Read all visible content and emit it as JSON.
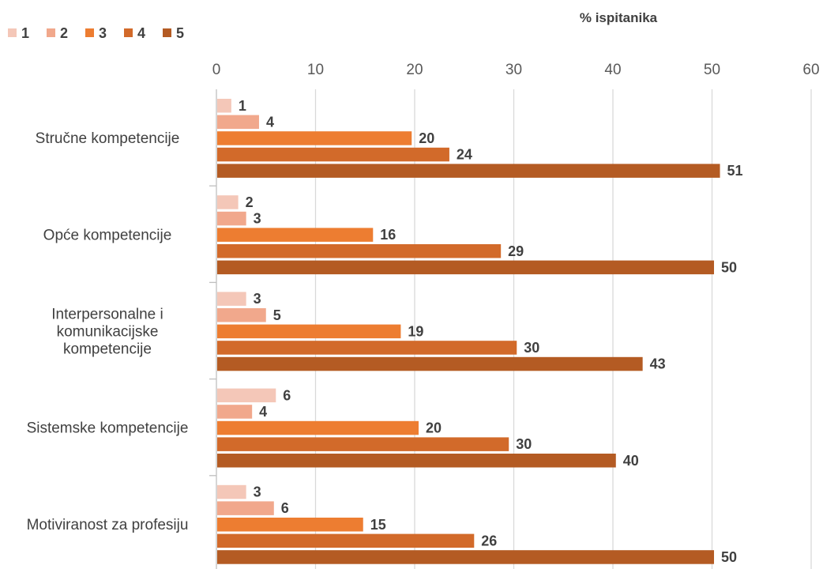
{
  "chart_data": {
    "type": "bar",
    "orientation": "horizontal",
    "axis_title": "% ispitanika",
    "categories": [
      [
        "Stručne kompetencije"
      ],
      [
        "Opće kompetencije"
      ],
      [
        "Interpersonalne i",
        "komunikacijske",
        "kompetencije"
      ],
      [
        "Sistemske kompetencije"
      ],
      [
        "Motiviranost za profesiju"
      ]
    ],
    "series": [
      {
        "name": "1",
        "color": "#F4C7B8",
        "values": [
          1.5,
          2.2,
          3,
          6,
          3
        ],
        "labels": [
          "1",
          "2",
          "3",
          "6",
          "3"
        ]
      },
      {
        "name": "2",
        "color": "#F1A88C",
        "values": [
          4.3,
          3,
          5,
          3.6,
          5.8
        ],
        "labels": [
          "4",
          "3",
          "5",
          "4",
          "6"
        ]
      },
      {
        "name": "3",
        "color": "#ED7D31",
        "values": [
          19.7,
          15.8,
          18.6,
          20.4,
          14.8
        ],
        "labels": [
          "20",
          "16",
          "19",
          "20",
          "15"
        ]
      },
      {
        "name": "4",
        "color": "#D26A2A",
        "values": [
          23.5,
          28.7,
          30.3,
          29.5,
          26
        ],
        "labels": [
          "24",
          "29",
          "30",
          "30",
          "26"
        ]
      },
      {
        "name": "5",
        "color": "#B45B23",
        "values": [
          50.8,
          50.2,
          43,
          40.3,
          50.2
        ],
        "labels": [
          "51",
          "50",
          "43",
          "40",
          "50"
        ]
      }
    ],
    "xlim": [
      0,
      60
    ],
    "xticks": [
      0,
      10,
      20,
      30,
      40,
      50,
      60
    ],
    "grid": true,
    "legend_position": "top-left"
  }
}
